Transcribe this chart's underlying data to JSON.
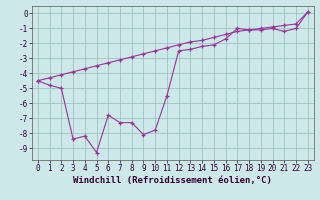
{
  "line1_x": [
    0,
    1,
    2,
    3,
    4,
    5,
    6,
    7,
    8,
    9,
    10,
    11,
    12,
    13,
    14,
    15,
    16,
    17,
    18,
    19,
    20,
    21,
    22,
    23
  ],
  "line1_y": [
    -4.5,
    -4.3,
    -4.1,
    -3.9,
    -3.7,
    -3.5,
    -3.3,
    -3.1,
    -2.9,
    -2.7,
    -2.5,
    -2.3,
    -2.1,
    -1.9,
    -1.8,
    -1.6,
    -1.4,
    -1.2,
    -1.1,
    -1.0,
    -0.9,
    -0.8,
    -0.7,
    0.1
  ],
  "line2_x": [
    0,
    1,
    2,
    3,
    4,
    5,
    6,
    7,
    8,
    9,
    10,
    11,
    12,
    13,
    14,
    15,
    16,
    17,
    18,
    19,
    20,
    21,
    22,
    23
  ],
  "line2_y": [
    -4.5,
    -4.8,
    -5.0,
    -8.4,
    -8.2,
    -9.3,
    -6.8,
    -7.3,
    -7.3,
    -8.1,
    -7.8,
    -5.5,
    -2.5,
    -2.4,
    -2.2,
    -2.1,
    -1.7,
    -1.0,
    -1.1,
    -1.1,
    -1.0,
    -1.2,
    -1.0,
    0.1
  ],
  "line_color": "#993399",
  "marker": "+",
  "bg_color": "#cce8e8",
  "grid_color": "#99bbbb",
  "xlabel": "Windchill (Refroidissement éolien,°C)",
  "xlim": [
    -0.5,
    23.5
  ],
  "ylim": [
    -9.8,
    0.5
  ],
  "yticks": [
    0,
    -1,
    -2,
    -3,
    -4,
    -5,
    -6,
    -7,
    -8,
    -9
  ],
  "xticks": [
    0,
    1,
    2,
    3,
    4,
    5,
    6,
    7,
    8,
    9,
    10,
    11,
    12,
    13,
    14,
    15,
    16,
    17,
    18,
    19,
    20,
    21,
    22,
    23
  ],
  "xlabel_fontsize": 6.5,
  "tick_fontsize": 5.5
}
